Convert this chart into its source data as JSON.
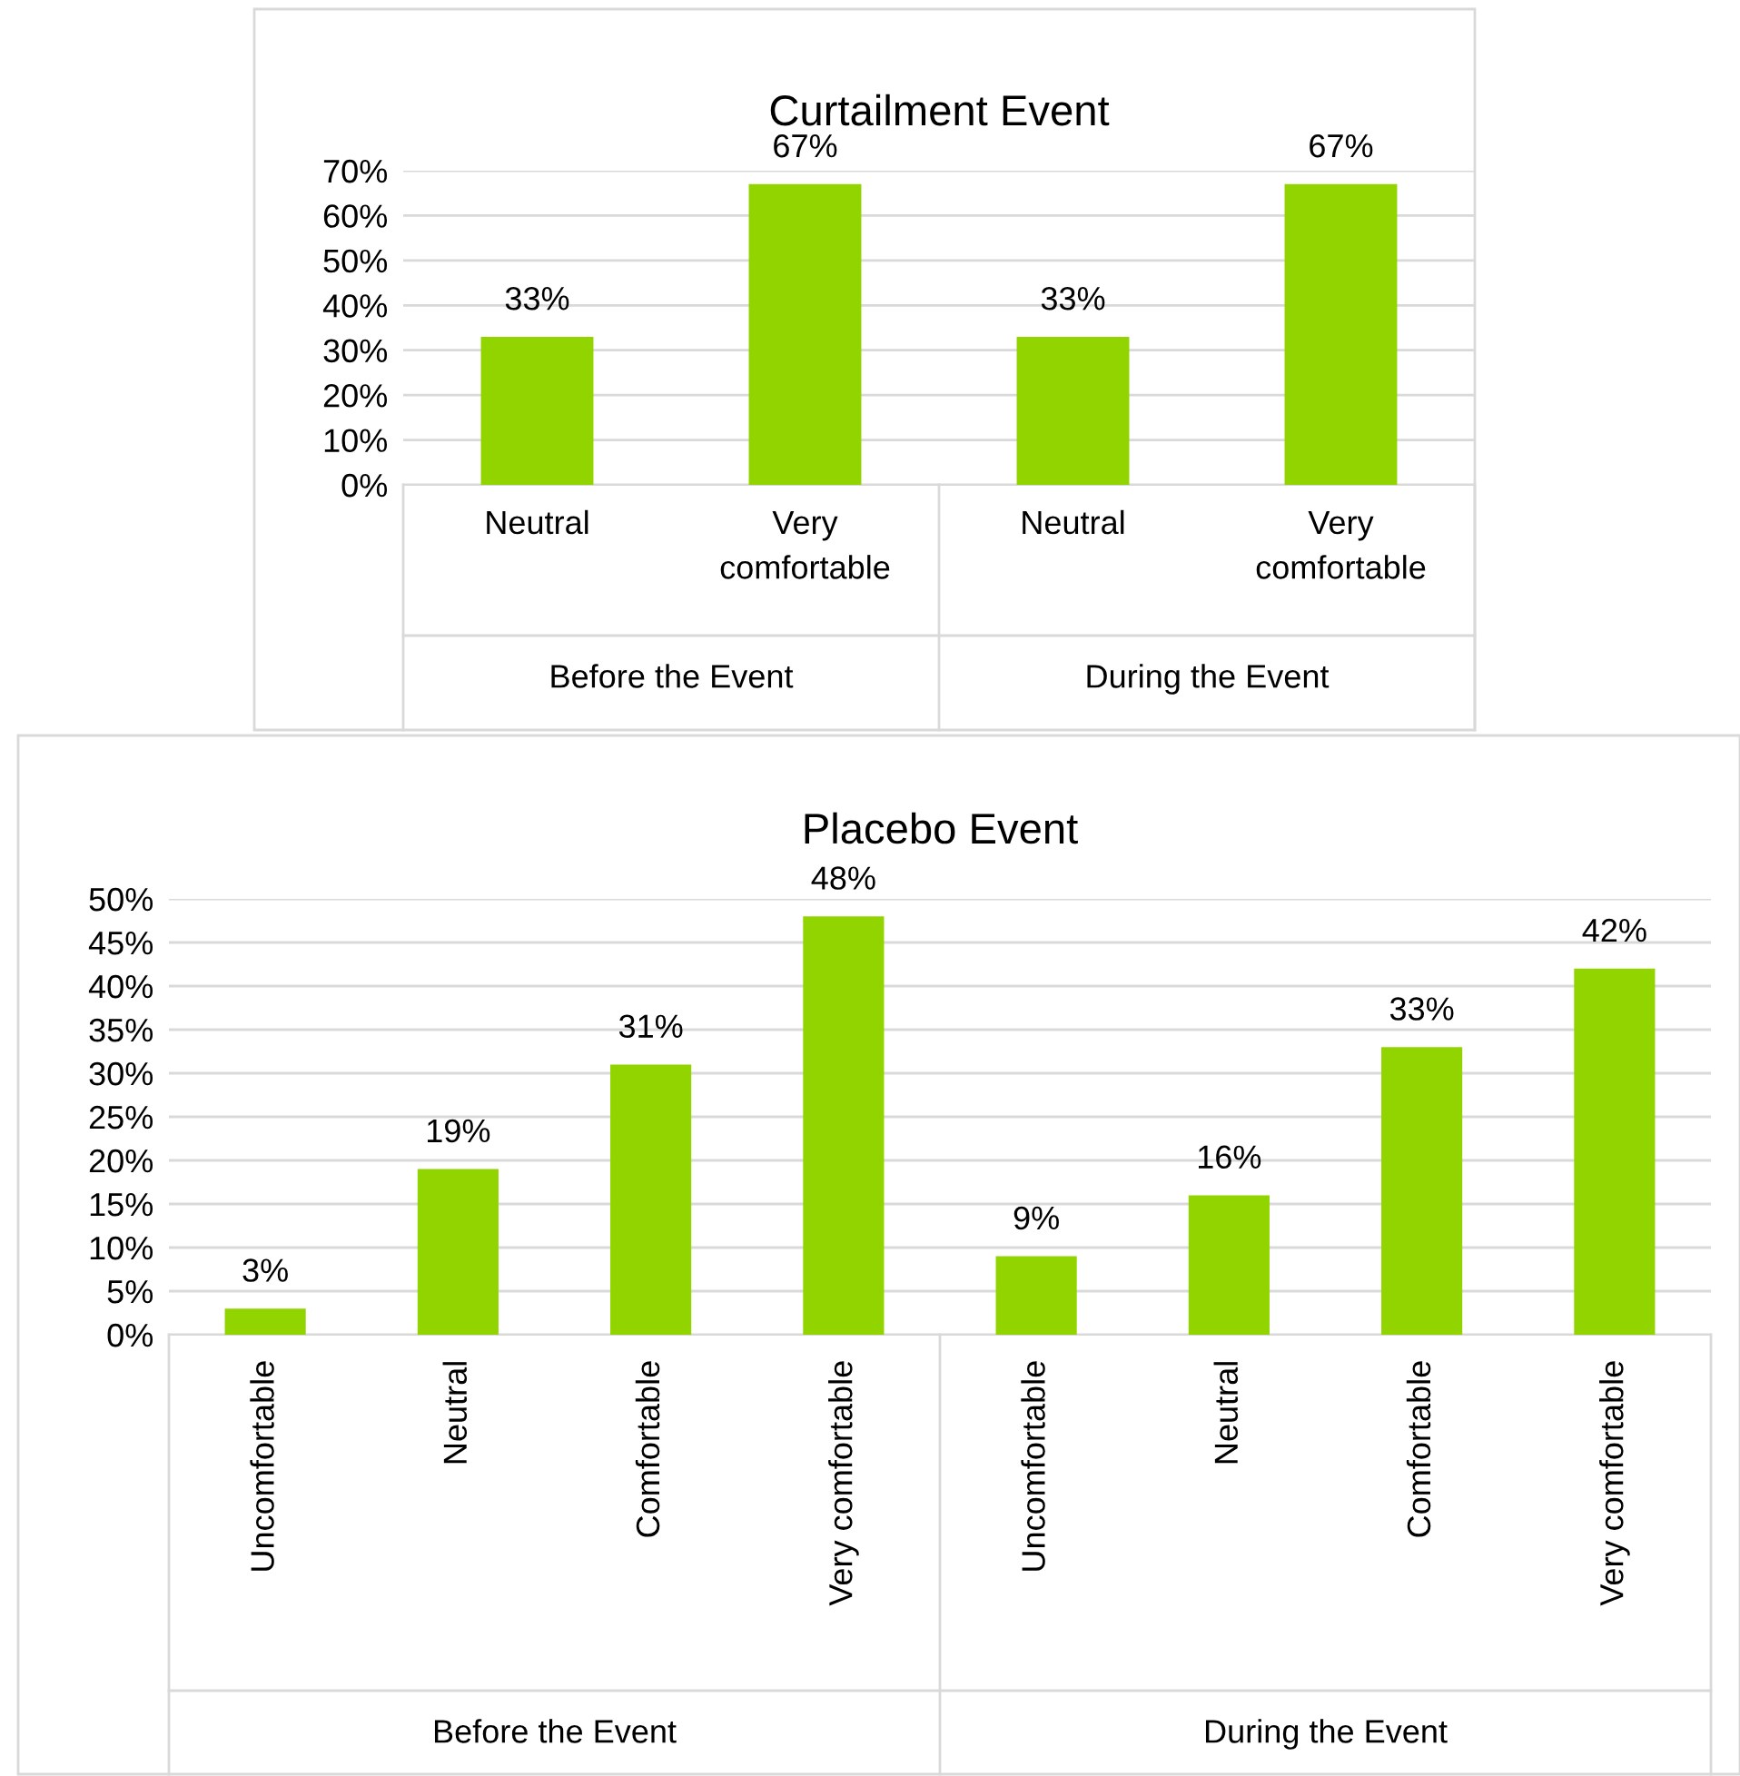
{
  "chart_data": [
    {
      "type": "bar",
      "title": "Curtailment Event",
      "categories": [
        "Neutral",
        "Very\ncomfortable",
        "Neutral",
        "Very\ncomfortable"
      ],
      "values": [
        33,
        67,
        33,
        67
      ],
      "value_labels": [
        "33%",
        "67%",
        "33%",
        "67%"
      ],
      "color": "#92d400",
      "ylim": [
        0,
        70
      ],
      "yticks": [
        {
          "value": 0,
          "label": "0%"
        },
        {
          "value": 10,
          "label": "10%"
        },
        {
          "value": 20,
          "label": "20%"
        },
        {
          "value": 30,
          "label": "30%"
        },
        {
          "value": 40,
          "label": "40%"
        },
        {
          "value": 50,
          "label": "50%"
        },
        {
          "value": 60,
          "label": "60%"
        },
        {
          "value": 70,
          "label": "70%"
        }
      ],
      "grid": "y",
      "annotations": [
        "Before the Event",
        "During the Event"
      ]
    },
    {
      "type": "bar",
      "title": "Placebo Event",
      "categories": [
        "Uncomfortable",
        "Neutral",
        "Comfortable",
        "Very comfortable",
        "Uncomfortable",
        "Neutral",
        "Comfortable",
        "Very comfortable"
      ],
      "values": [
        3,
        19,
        31,
        48,
        9,
        16,
        33,
        42
      ],
      "value_labels": [
        "3%",
        "19%",
        "31%",
        "48%",
        "9%",
        "16%",
        "33%",
        "42%"
      ],
      "color": "#92d400",
      "ylim": [
        0,
        50
      ],
      "yticks": [
        {
          "value": 0,
          "label": "0%"
        },
        {
          "value": 5,
          "label": "5%"
        },
        {
          "value": 10,
          "label": "10%"
        },
        {
          "value": 15,
          "label": "15%"
        },
        {
          "value": 20,
          "label": "20%"
        },
        {
          "value": 25,
          "label": "25%"
        },
        {
          "value": 30,
          "label": "30%"
        },
        {
          "value": 35,
          "label": "35%"
        },
        {
          "value": 40,
          "label": "40%"
        },
        {
          "value": 45,
          "label": "45%"
        },
        {
          "value": 50,
          "label": "50%"
        }
      ],
      "grid": "y",
      "annotations": [
        "Before the Event",
        "During the Event"
      ]
    }
  ]
}
